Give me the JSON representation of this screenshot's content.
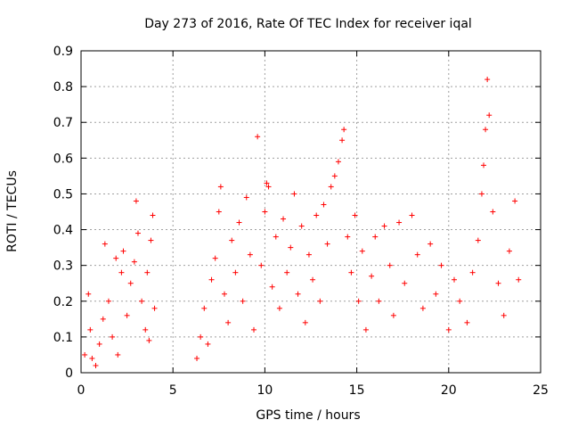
{
  "chart_data": {
    "type": "scatter",
    "title": "Day 273 of 2016, Rate Of TEC Index for receiver iqal",
    "xlabel": "GPS time / hours",
    "ylabel": "ROTI / TECUs",
    "xlim": [
      0,
      25
    ],
    "ylim": [
      0,
      0.9
    ],
    "grid": true,
    "marker": "+",
    "color": "#ff0000",
    "x_ticks": [
      0,
      5,
      10,
      15,
      20,
      25
    ],
    "x_tick_labels": [
      "0",
      "5",
      "10",
      "15",
      "20",
      "25"
    ],
    "y_ticks": [
      0,
      0.1,
      0.2,
      0.3,
      0.4,
      0.5,
      0.6,
      0.7,
      0.8,
      0.9
    ],
    "y_tick_labels": [
      "0",
      "0.1",
      "0.2",
      "0.3",
      "0.4",
      "0.5",
      "0.6",
      "0.7",
      "0.8",
      "0.9"
    ],
    "series": [
      {
        "name": "ROTI",
        "points": [
          [
            0.2,
            0.05
          ],
          [
            0.4,
            0.22
          ],
          [
            0.5,
            0.12
          ],
          [
            0.6,
            0.04
          ],
          [
            0.8,
            0.02
          ],
          [
            1.0,
            0.08
          ],
          [
            1.2,
            0.15
          ],
          [
            1.3,
            0.36
          ],
          [
            1.5,
            0.2
          ],
          [
            1.7,
            0.1
          ],
          [
            1.9,
            0.32
          ],
          [
            2.0,
            0.05
          ],
          [
            2.2,
            0.28
          ],
          [
            2.3,
            0.34
          ],
          [
            2.5,
            0.16
          ],
          [
            2.7,
            0.25
          ],
          [
            2.9,
            0.31
          ],
          [
            3.0,
            0.48
          ],
          [
            3.1,
            0.39
          ],
          [
            3.3,
            0.2
          ],
          [
            3.5,
            0.12
          ],
          [
            3.6,
            0.28
          ],
          [
            3.7,
            0.09
          ],
          [
            3.8,
            0.37
          ],
          [
            3.9,
            0.44
          ],
          [
            4.0,
            0.18
          ],
          [
            6.3,
            0.04
          ],
          [
            6.5,
            0.1
          ],
          [
            6.7,
            0.18
          ],
          [
            6.9,
            0.08
          ],
          [
            7.1,
            0.26
          ],
          [
            7.3,
            0.32
          ],
          [
            7.5,
            0.45
          ],
          [
            7.6,
            0.52
          ],
          [
            7.8,
            0.22
          ],
          [
            8.0,
            0.14
          ],
          [
            8.2,
            0.37
          ],
          [
            8.4,
            0.28
          ],
          [
            8.6,
            0.42
          ],
          [
            8.8,
            0.2
          ],
          [
            9.0,
            0.49
          ],
          [
            9.2,
            0.33
          ],
          [
            9.4,
            0.12
          ],
          [
            9.6,
            0.66
          ],
          [
            9.8,
            0.3
          ],
          [
            10.0,
            0.45
          ],
          [
            10.1,
            0.53
          ],
          [
            10.2,
            0.52
          ],
          [
            10.4,
            0.24
          ],
          [
            10.6,
            0.38
          ],
          [
            10.8,
            0.18
          ],
          [
            11.0,
            0.43
          ],
          [
            11.2,
            0.28
          ],
          [
            11.4,
            0.35
          ],
          [
            11.6,
            0.5
          ],
          [
            11.8,
            0.22
          ],
          [
            12.0,
            0.41
          ],
          [
            12.2,
            0.14
          ],
          [
            12.4,
            0.33
          ],
          [
            12.6,
            0.26
          ],
          [
            12.8,
            0.44
          ],
          [
            13.0,
            0.2
          ],
          [
            13.2,
            0.47
          ],
          [
            13.4,
            0.36
          ],
          [
            13.6,
            0.52
          ],
          [
            13.8,
            0.55
          ],
          [
            14.0,
            0.59
          ],
          [
            14.2,
            0.65
          ],
          [
            14.3,
            0.68
          ],
          [
            14.5,
            0.38
          ],
          [
            14.7,
            0.28
          ],
          [
            14.9,
            0.44
          ],
          [
            15.1,
            0.2
          ],
          [
            15.3,
            0.34
          ],
          [
            15.5,
            0.12
          ],
          [
            15.8,
            0.27
          ],
          [
            16.0,
            0.38
          ],
          [
            16.2,
            0.2
          ],
          [
            16.5,
            0.41
          ],
          [
            16.8,
            0.3
          ],
          [
            17.0,
            0.16
          ],
          [
            17.3,
            0.42
          ],
          [
            17.6,
            0.25
          ],
          [
            18.0,
            0.44
          ],
          [
            18.3,
            0.33
          ],
          [
            18.6,
            0.18
          ],
          [
            19.0,
            0.36
          ],
          [
            19.3,
            0.22
          ],
          [
            19.6,
            0.3
          ],
          [
            20.0,
            0.12
          ],
          [
            20.3,
            0.26
          ],
          [
            20.6,
            0.2
          ],
          [
            21.0,
            0.14
          ],
          [
            21.3,
            0.28
          ],
          [
            21.6,
            0.37
          ],
          [
            21.8,
            0.5
          ],
          [
            21.9,
            0.58
          ],
          [
            22.0,
            0.68
          ],
          [
            22.1,
            0.82
          ],
          [
            22.2,
            0.72
          ],
          [
            22.4,
            0.45
          ],
          [
            22.7,
            0.25
          ],
          [
            23.0,
            0.16
          ],
          [
            23.3,
            0.34
          ],
          [
            23.6,
            0.48
          ],
          [
            23.8,
            0.26
          ]
        ]
      }
    ]
  }
}
